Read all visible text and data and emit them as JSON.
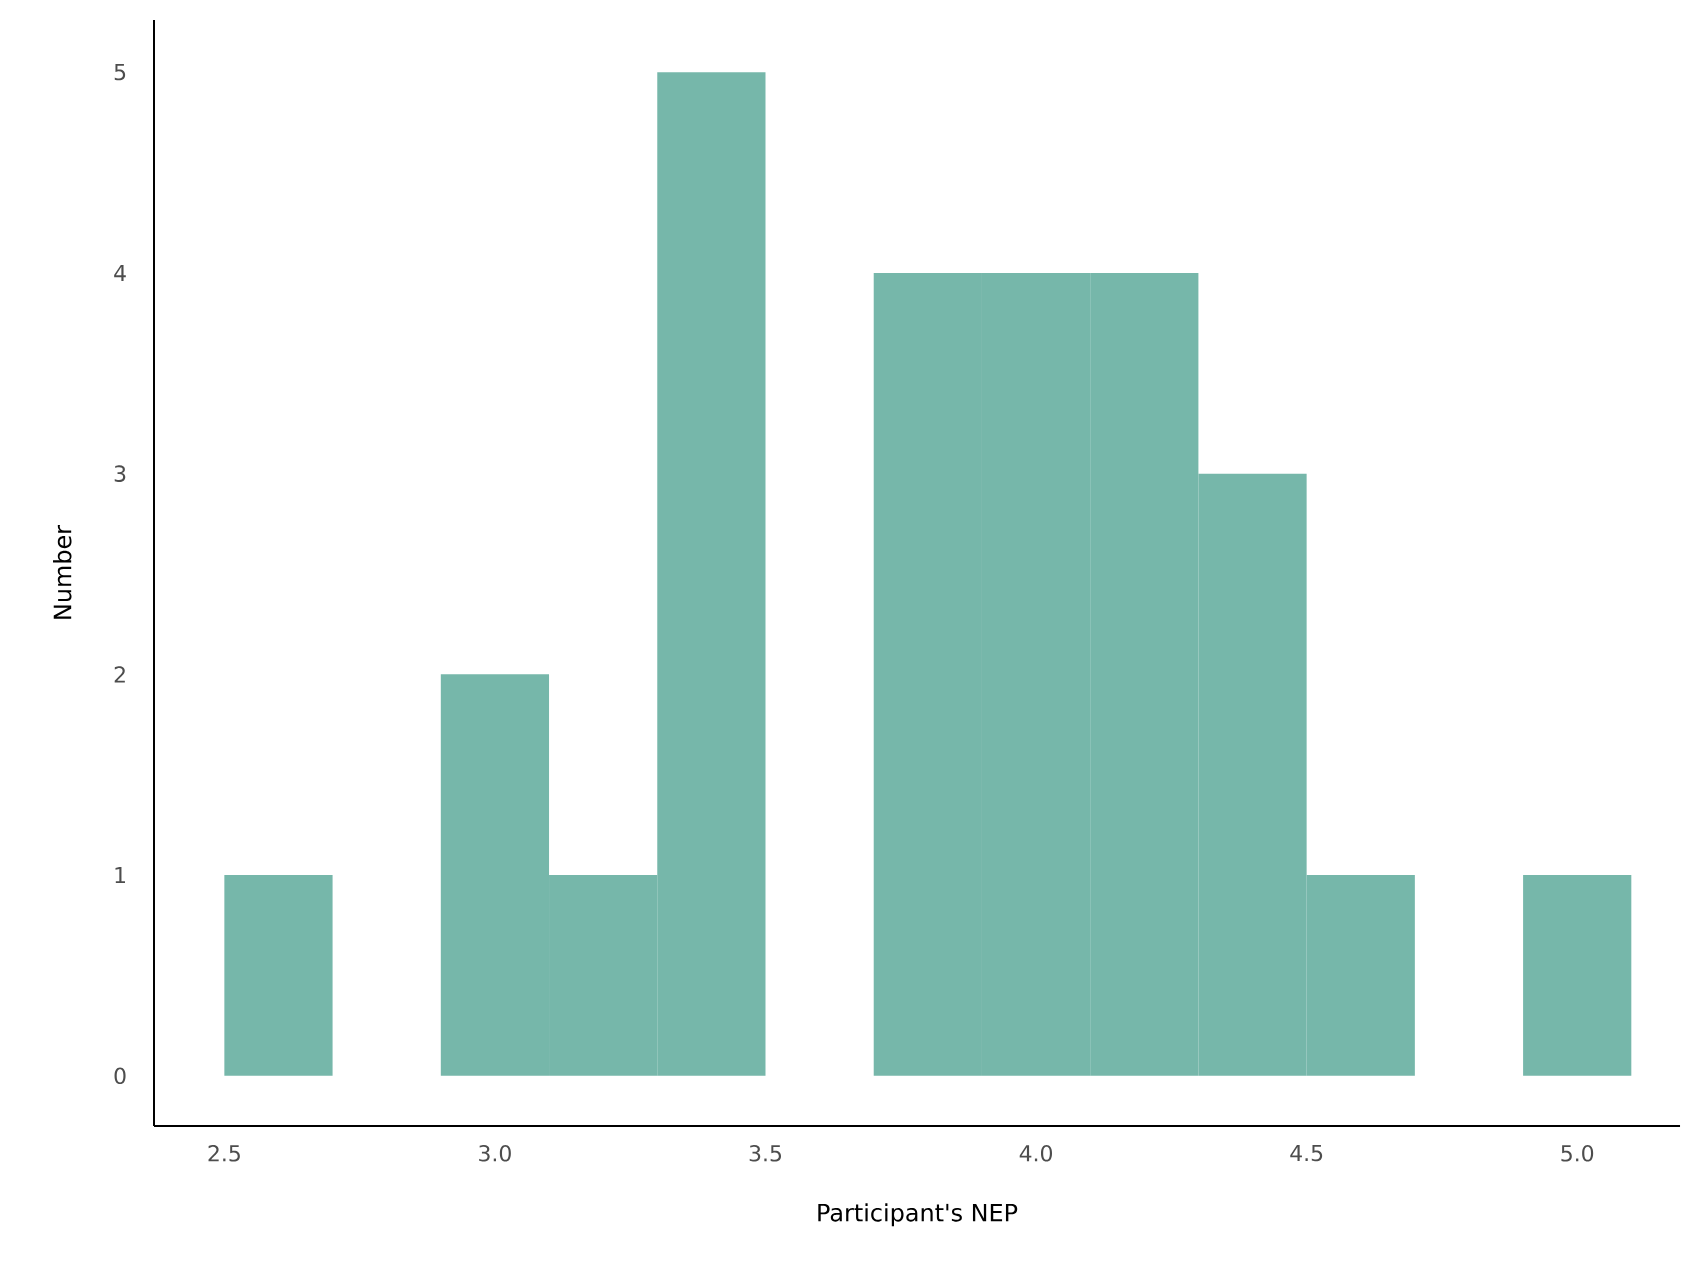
{
  "chart_data": {
    "type": "histogram",
    "xlabel": "Participant's NEP",
    "ylabel": "Number",
    "bins": [
      2.5,
      2.7,
      2.9,
      3.1,
      3.3,
      3.5,
      3.7,
      3.9,
      4.1,
      4.3,
      4.5,
      4.7,
      4.9,
      5.1
    ],
    "values": [
      1,
      0,
      2,
      1,
      5,
      0,
      4,
      4,
      4,
      3,
      1,
      0,
      1
    ],
    "color": "#76b7aa",
    "xlim": [
      2.37,
      5.19
    ],
    "ylim": [
      -0.25,
      5.26
    ],
    "xticks": [
      {
        "value": 2.5,
        "label": "2.5"
      },
      {
        "value": 3.0,
        "label": "3.0"
      },
      {
        "value": 3.5,
        "label": "3.5"
      },
      {
        "value": 4.0,
        "label": "4.0"
      },
      {
        "value": 4.5,
        "label": "4.5"
      },
      {
        "value": 5.0,
        "label": "5.0"
      }
    ],
    "yticks": [
      0,
      1,
      2,
      3,
      4,
      5
    ],
    "grid": false
  }
}
